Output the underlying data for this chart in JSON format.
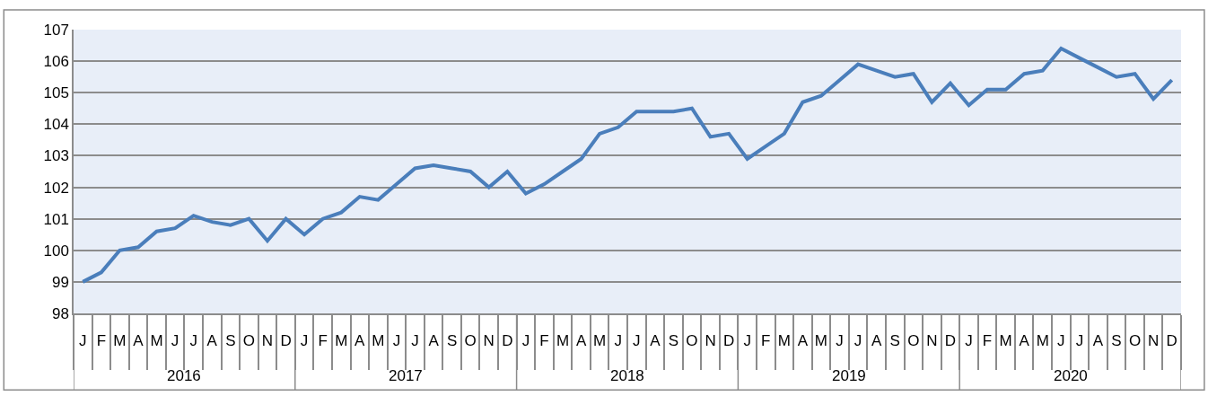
{
  "chart_data": {
    "type": "line",
    "categories": [
      "J",
      "F",
      "M",
      "A",
      "M",
      "J",
      "J",
      "A",
      "S",
      "O",
      "N",
      "D",
      "J",
      "F",
      "M",
      "A",
      "M",
      "J",
      "J",
      "A",
      "S",
      "O",
      "N",
      "D",
      "J",
      "F",
      "M",
      "A",
      "M",
      "J",
      "J",
      "A",
      "S",
      "O",
      "N",
      "D",
      "J",
      "F",
      "M",
      "A",
      "M",
      "J",
      "J",
      "A",
      "S",
      "O",
      "N",
      "D",
      "J",
      "F",
      "M",
      "A",
      "M",
      "J",
      "J",
      "A",
      "S",
      "O",
      "N",
      "D"
    ],
    "series": [
      {
        "color": "#4a7ebb",
        "values": [
          99.0,
          99.3,
          100.0,
          100.1,
          100.6,
          100.7,
          101.1,
          100.9,
          100.8,
          101.0,
          100.3,
          101.0,
          100.5,
          101.0,
          101.2,
          101.7,
          101.6,
          102.1,
          102.6,
          102.7,
          102.6,
          102.5,
          102.0,
          102.5,
          101.8,
          102.1,
          102.5,
          102.9,
          103.7,
          103.9,
          104.4,
          104.4,
          104.4,
          104.5,
          103.6,
          103.7,
          102.9,
          103.3,
          103.7,
          104.7,
          104.9,
          105.4,
          105.9,
          105.7,
          105.5,
          105.6,
          104.7,
          105.3,
          104.6,
          105.1,
          105.1,
          105.6,
          105.7,
          106.4,
          106.1,
          105.8,
          105.5,
          105.6,
          104.8,
          105.4
        ]
      }
    ],
    "annotations": [
      "2016",
      "2017",
      "2018",
      "2019",
      "2020"
    ],
    "ylim": [
      98,
      107
    ],
    "yticks": [
      98,
      99,
      100,
      101,
      102,
      103,
      104,
      105,
      106,
      107
    ],
    "grid": "y",
    "legend": false,
    "marker": "none",
    "line_style": "solid"
  }
}
